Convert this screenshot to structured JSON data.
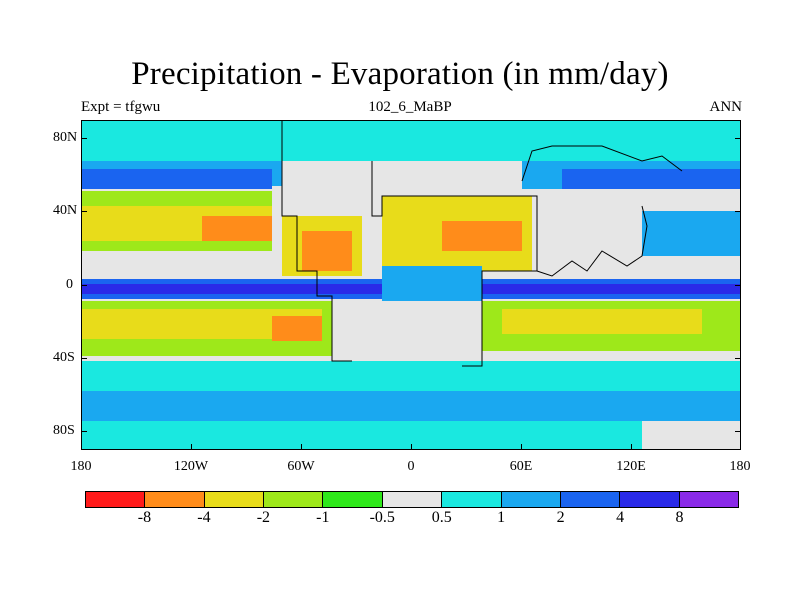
{
  "title": "Precipitation - Evaporation (in mm/day)",
  "subtitle_left": "Expt = tfgwu",
  "subtitle_center": "102_6_MaBP",
  "subtitle_right": "ANN",
  "lat_labels": [
    "80N",
    "40N",
    "0",
    "40S",
    "80S"
  ],
  "lon_labels": [
    "180",
    "120W",
    "60W",
    "0",
    "60E",
    "120E",
    "180"
  ],
  "colorbar": {
    "colors": [
      "#ff1a1a",
      "#ff8c1a",
      "#e8dc1a",
      "#9ee81a",
      "#2ee81a",
      "#e6e6e6",
      "#1ae8e0",
      "#1aa8f0",
      "#1a64f0",
      "#2a2ae8",
      "#8a2ae8"
    ],
    "labels": [
      "-8",
      "-4",
      "-2",
      "-1",
      "-0.5",
      "0.5",
      "1",
      "2",
      "4",
      "8"
    ]
  }
}
